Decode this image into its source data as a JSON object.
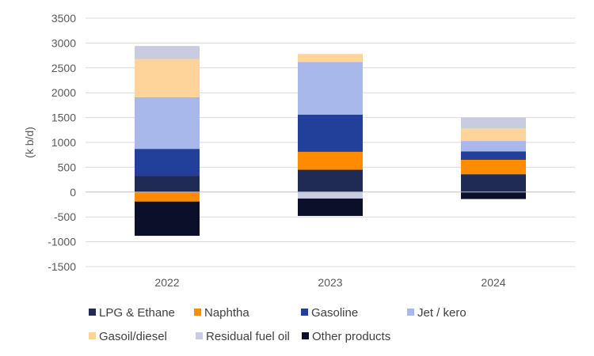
{
  "chart_data": {
    "type": "bar",
    "stacked": true,
    "categories": [
      "2022",
      "2023",
      "2024"
    ],
    "ylabel": "(k b/d)",
    "ylim": [
      -1500,
      3500
    ],
    "yticks": [
      -1500,
      -1000,
      -500,
      0,
      500,
      1000,
      1500,
      2000,
      2500,
      3000,
      3500
    ],
    "grid": true,
    "legend_position": "bottom",
    "series": [
      {
        "name": "LPG & Ethane",
        "color": "#1f2a55",
        "values": [
          330,
          450,
          360
        ]
      },
      {
        "name": "Naphtha",
        "color": "#ff8c00",
        "values": [
          -190,
          360,
          290
        ]
      },
      {
        "name": "Gasoline",
        "color": "#22409a",
        "values": [
          540,
          750,
          170
        ]
      },
      {
        "name": "Jet / kero",
        "color": "#a9b8ea",
        "values": [
          1040,
          1060,
          210
        ]
      },
      {
        "name": "Gasoil/diesel",
        "color": "#ffd49b",
        "values": [
          770,
          160,
          250
        ]
      },
      {
        "name": "Residual fuel oil",
        "color": "#c9cbe0",
        "values": [
          260,
          -130,
          220
        ]
      },
      {
        "name": "Other products",
        "color": "#0b0f2a",
        "values": [
          -690,
          -350,
          -140
        ]
      }
    ]
  }
}
